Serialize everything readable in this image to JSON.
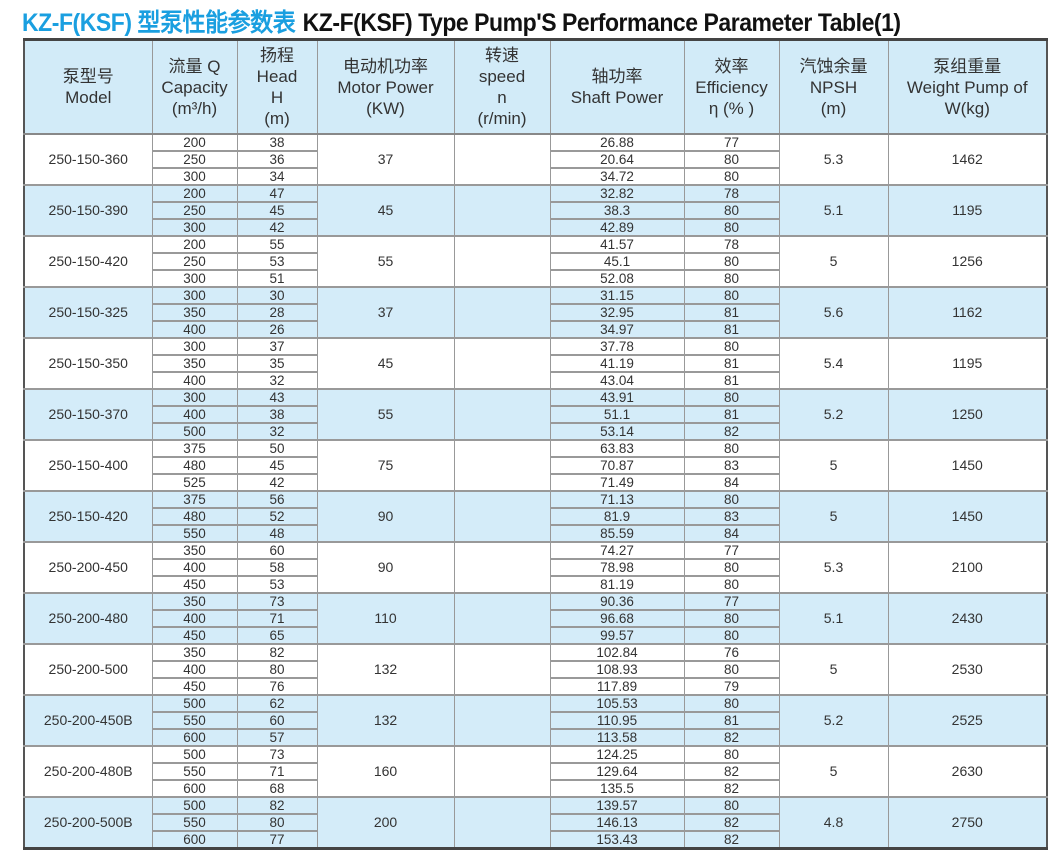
{
  "title": {
    "cn": "KZ-F(KSF) 型泵性能参数表",
    "en": "KZ-F(KSF) Type Pump'S Performance Parameter Table(1)"
  },
  "colors": {
    "accent": "#1a9fe0",
    "header_bg": "#d2ebf8",
    "alt_row_bg": "#d4ecf9"
  },
  "headers": [
    [
      "泵型号",
      "Model"
    ],
    [
      "流量 Q",
      "Capacity",
      "(m³/h)"
    ],
    [
      "扬程",
      "Head",
      "H",
      "(m)"
    ],
    [
      "电动机功率",
      "Motor Power",
      "(KW)"
    ],
    [
      "转速",
      "speed",
      "n",
      "(r/min)"
    ],
    [
      "轴功率",
      "Shaft Power"
    ],
    [
      "效率",
      "Efficiency",
      "η (% )"
    ],
    [
      "汽蚀余量",
      "NPSH",
      "(m)"
    ],
    [
      "泵组重量",
      "Weight Pump of",
      "W(kg)"
    ]
  ],
  "rows": [
    {
      "model": "250-150-360",
      "capacity": [
        "200",
        "250",
        "300"
      ],
      "head": [
        "38",
        "36",
        "34"
      ],
      "motor": "37",
      "speed": "",
      "shaft": [
        "26.88",
        "20.64",
        "34.72"
      ],
      "eff": [
        "77",
        "80",
        "80"
      ],
      "npsh": "5.3",
      "weight": "1462"
    },
    {
      "model": "250-150-390",
      "capacity": [
        "200",
        "250",
        "300"
      ],
      "head": [
        "47",
        "45",
        "42"
      ],
      "motor": "45",
      "speed": "",
      "shaft": [
        "32.82",
        "38.3",
        "42.89"
      ],
      "eff": [
        "78",
        "80",
        "80"
      ],
      "npsh": "5.1",
      "weight": "1195"
    },
    {
      "model": "250-150-420",
      "capacity": [
        "200",
        "250",
        "300"
      ],
      "head": [
        "55",
        "53",
        "51"
      ],
      "motor": "55",
      "speed": "",
      "shaft": [
        "41.57",
        "45.1",
        "52.08"
      ],
      "eff": [
        "78",
        "80",
        "80"
      ],
      "npsh": "5",
      "weight": "1256"
    },
    {
      "model": "250-150-325",
      "capacity": [
        "300",
        "350",
        "400"
      ],
      "head": [
        "30",
        "28",
        "26"
      ],
      "motor": "37",
      "speed": "",
      "shaft": [
        "31.15",
        "32.95",
        "34.97"
      ],
      "eff": [
        "80",
        "81",
        "81"
      ],
      "npsh": "5.6",
      "weight": "1162"
    },
    {
      "model": "250-150-350",
      "capacity": [
        "300",
        "350",
        "400"
      ],
      "head": [
        "37",
        "35",
        "32"
      ],
      "motor": "45",
      "speed": "",
      "shaft": [
        "37.78",
        "41.19",
        "43.04"
      ],
      "eff": [
        "80",
        "81",
        "81"
      ],
      "npsh": "5.4",
      "weight": "1195"
    },
    {
      "model": "250-150-370",
      "capacity": [
        "300",
        "400",
        "500"
      ],
      "head": [
        "43",
        "38",
        "32"
      ],
      "motor": "55",
      "speed": "",
      "shaft": [
        "43.91",
        "51.1",
        "53.14"
      ],
      "eff": [
        "80",
        "81",
        "82"
      ],
      "npsh": "5.2",
      "weight": "1250"
    },
    {
      "model": "250-150-400",
      "capacity": [
        "375",
        "480",
        "525"
      ],
      "head": [
        "50",
        "45",
        "42"
      ],
      "motor": "75",
      "speed": "",
      "shaft": [
        "63.83",
        "70.87",
        "71.49"
      ],
      "eff": [
        "80",
        "83",
        "84"
      ],
      "npsh": "5",
      "weight": "1450"
    },
    {
      "model": "250-150-420",
      "capacity": [
        "375",
        "480",
        "550"
      ],
      "head": [
        "56",
        "52",
        "48"
      ],
      "motor": "90",
      "speed": "",
      "shaft": [
        "71.13",
        "81.9",
        "85.59"
      ],
      "eff": [
        "80",
        "83",
        "84"
      ],
      "npsh": "5",
      "weight": "1450"
    },
    {
      "model": "250-200-450",
      "capacity": [
        "350",
        "400",
        "450"
      ],
      "head": [
        "60",
        "58",
        "53"
      ],
      "motor": "90",
      "speed": "",
      "shaft": [
        "74.27",
        "78.98",
        "81.19"
      ],
      "eff": [
        "77",
        "80",
        "80"
      ],
      "npsh": "5.3",
      "weight": "2100"
    },
    {
      "model": "250-200-480",
      "capacity": [
        "350",
        "400",
        "450"
      ],
      "head": [
        "73",
        "71",
        "65"
      ],
      "motor": "110",
      "speed": "",
      "shaft": [
        "90.36",
        "96.68",
        "99.57"
      ],
      "eff": [
        "77",
        "80",
        "80"
      ],
      "npsh": "5.1",
      "weight": "2430"
    },
    {
      "model": "250-200-500",
      "capacity": [
        "350",
        "400",
        "450"
      ],
      "head": [
        "82",
        "80",
        "76"
      ],
      "motor": "132",
      "speed": "",
      "shaft": [
        "102.84",
        "108.93",
        "117.89"
      ],
      "eff": [
        "76",
        "80",
        "79"
      ],
      "npsh": "5",
      "weight": "2530"
    },
    {
      "model": "250-200-450B",
      "capacity": [
        "500",
        "550",
        "600"
      ],
      "head": [
        "62",
        "60",
        "57"
      ],
      "motor": "132",
      "speed": "",
      "shaft": [
        "105.53",
        "110.95",
        "113.58"
      ],
      "eff": [
        "80",
        "81",
        "82"
      ],
      "npsh": "5.2",
      "weight": "2525"
    },
    {
      "model": "250-200-480B",
      "capacity": [
        "500",
        "550",
        "600"
      ],
      "head": [
        "73",
        "71",
        "68"
      ],
      "motor": "160",
      "speed": "",
      "shaft": [
        "124.25",
        "129.64",
        "135.5"
      ],
      "eff": [
        "80",
        "82",
        "82"
      ],
      "npsh": "5",
      "weight": "2630"
    },
    {
      "model": "250-200-500B",
      "capacity": [
        "500",
        "550",
        "600"
      ],
      "head": [
        "82",
        "80",
        "77"
      ],
      "motor": "200",
      "speed": "",
      "shaft": [
        "139.57",
        "146.13",
        "153.43"
      ],
      "eff": [
        "80",
        "82",
        "82"
      ],
      "npsh": "4.8",
      "weight": "2750"
    }
  ]
}
